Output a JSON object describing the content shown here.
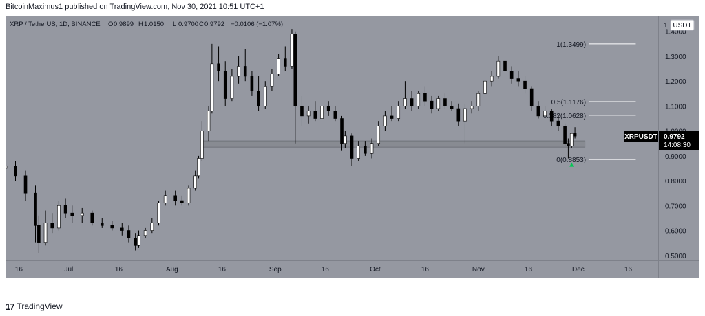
{
  "header": {
    "published_line": "BitcoinMaximus1 published on TradingView.com, Nov 30, 2021 10:51 UTC+1"
  },
  "legend": {
    "symbol": "XRP / TetherUS, 1D, BINANCE",
    "o_label": "O",
    "o_value": "0.9899",
    "h_label": "H",
    "h_value": "1.0150",
    "l_label": "L",
    "l_value": "0.9700",
    "c_label": "C",
    "c_value": "0.9792",
    "change": "−0.0106 (−1.07%)"
  },
  "price_axis": {
    "currency": "USDT",
    "top_marker": "1",
    "ticks": [
      "1.4000",
      "1.3000",
      "1.2000",
      "1.1000",
      "1.0000",
      "0.9000",
      "0.8000",
      "0.7000",
      "0.6000",
      "0.5000"
    ]
  },
  "last_price": {
    "symbol": "XRPUSDT",
    "price": "0.9792",
    "countdown": "14:08:30"
  },
  "fib_levels": [
    {
      "label": "1(1.3499)"
    },
    {
      "label": "0.5(1.1176)"
    },
    {
      "label": "0.382(1.0628)"
    },
    {
      "label": "0(0.8853)"
    }
  ],
  "time_axis": {
    "labels": [
      "16",
      "Jul",
      "16",
      "Aug",
      "16",
      "Sep",
      "16",
      "Oct",
      "16",
      "Nov",
      "16",
      "Dec",
      "16"
    ]
  },
  "footer": {
    "brand": "TradingView"
  },
  "colors": {
    "background": "#9598a1",
    "candle_up": "#ffffff",
    "candle_down": "#000000",
    "support_zone": "#888b92",
    "arrow": "#00c853",
    "fib_line": "#ffffff"
  },
  "chart_data": {
    "type": "candlestick",
    "title": "XRP / TetherUS, 1D, BINANCE",
    "ylim": [
      0.48,
      1.46
    ],
    "y_ticks": [
      1.4,
      1.3,
      1.2,
      1.1,
      1.0,
      0.9,
      0.8,
      0.7,
      0.6,
      0.5
    ],
    "x_start": "2021-06-12",
    "x_end": "2021-12-25",
    "x_ticks": [
      "2021-06-16",
      "2021-07-01",
      "2021-07-16",
      "2021-08-01",
      "2021-08-16",
      "2021-09-01",
      "2021-09-16",
      "2021-10-01",
      "2021-10-16",
      "2021-11-01",
      "2021-11-16",
      "2021-12-01",
      "2021-12-16"
    ],
    "support_zone": {
      "from_date": "2021-08-10",
      "to_date": "2021-12-03",
      "low": 0.935,
      "high": 0.96
    },
    "fib_prices": [
      1.3499,
      1.1176,
      1.0628,
      0.8853
    ],
    "fib_from_date": "2021-11-30",
    "fib_to_date": "2021-12-10",
    "arrow": {
      "date": "2021-11-29",
      "price": 0.862
    },
    "candles": [
      {
        "d": "2021-06-12",
        "o": 0.85,
        "h": 0.88,
        "l": 0.82,
        "c": 0.86
      },
      {
        "d": "2021-06-15",
        "o": 0.86,
        "h": 0.88,
        "l": 0.8,
        "c": 0.82
      },
      {
        "d": "2021-06-18",
        "o": 0.82,
        "h": 0.84,
        "l": 0.72,
        "c": 0.75
      },
      {
        "d": "2021-06-21",
        "o": 0.75,
        "h": 0.78,
        "l": 0.55,
        "c": 0.62
      },
      {
        "d": "2021-06-22",
        "o": 0.62,
        "h": 0.66,
        "l": 0.51,
        "c": 0.55
      },
      {
        "d": "2021-06-24",
        "o": 0.55,
        "h": 0.68,
        "l": 0.54,
        "c": 0.63
      },
      {
        "d": "2021-06-26",
        "o": 0.63,
        "h": 0.67,
        "l": 0.59,
        "c": 0.61
      },
      {
        "d": "2021-06-28",
        "o": 0.61,
        "h": 0.72,
        "l": 0.6,
        "c": 0.7
      },
      {
        "d": "2021-06-30",
        "o": 0.7,
        "h": 0.73,
        "l": 0.65,
        "c": 0.67
      },
      {
        "d": "2021-07-02",
        "o": 0.67,
        "h": 0.7,
        "l": 0.63,
        "c": 0.66
      },
      {
        "d": "2021-07-05",
        "o": 0.66,
        "h": 0.69,
        "l": 0.63,
        "c": 0.67
      },
      {
        "d": "2021-07-08",
        "o": 0.67,
        "h": 0.68,
        "l": 0.62,
        "c": 0.63
      },
      {
        "d": "2021-07-11",
        "o": 0.63,
        "h": 0.65,
        "l": 0.61,
        "c": 0.62
      },
      {
        "d": "2021-07-14",
        "o": 0.62,
        "h": 0.64,
        "l": 0.6,
        "c": 0.61
      },
      {
        "d": "2021-07-17",
        "o": 0.61,
        "h": 0.63,
        "l": 0.58,
        "c": 0.6
      },
      {
        "d": "2021-07-19",
        "o": 0.6,
        "h": 0.62,
        "l": 0.55,
        "c": 0.57
      },
      {
        "d": "2021-07-21",
        "o": 0.57,
        "h": 0.59,
        "l": 0.52,
        "c": 0.54
      },
      {
        "d": "2021-07-22",
        "o": 0.54,
        "h": 0.6,
        "l": 0.53,
        "c": 0.58
      },
      {
        "d": "2021-07-24",
        "o": 0.58,
        "h": 0.61,
        "l": 0.57,
        "c": 0.6
      },
      {
        "d": "2021-07-26",
        "o": 0.6,
        "h": 0.65,
        "l": 0.59,
        "c": 0.63
      },
      {
        "d": "2021-07-28",
        "o": 0.63,
        "h": 0.72,
        "l": 0.62,
        "c": 0.71
      },
      {
        "d": "2021-07-30",
        "o": 0.71,
        "h": 0.76,
        "l": 0.7,
        "c": 0.74
      },
      {
        "d": "2021-08-02",
        "o": 0.74,
        "h": 0.76,
        "l": 0.7,
        "c": 0.72
      },
      {
        "d": "2021-08-04",
        "o": 0.72,
        "h": 0.74,
        "l": 0.7,
        "c": 0.71
      },
      {
        "d": "2021-08-06",
        "o": 0.71,
        "h": 0.78,
        "l": 0.7,
        "c": 0.77
      },
      {
        "d": "2021-08-08",
        "o": 0.77,
        "h": 0.84,
        "l": 0.76,
        "c": 0.82
      },
      {
        "d": "2021-08-09",
        "o": 0.82,
        "h": 0.9,
        "l": 0.81,
        "c": 0.89
      },
      {
        "d": "2021-08-10",
        "o": 0.89,
        "h": 1.04,
        "l": 0.88,
        "c": 1.0
      },
      {
        "d": "2021-08-12",
        "o": 1.0,
        "h": 1.1,
        "l": 0.96,
        "c": 1.08
      },
      {
        "d": "2021-08-13",
        "o": 1.08,
        "h": 1.35,
        "l": 1.07,
        "c": 1.27
      },
      {
        "d": "2021-08-15",
        "o": 1.27,
        "h": 1.34,
        "l": 1.2,
        "c": 1.24
      },
      {
        "d": "2021-08-17",
        "o": 1.24,
        "h": 1.28,
        "l": 1.1,
        "c": 1.13
      },
      {
        "d": "2021-08-19",
        "o": 1.13,
        "h": 1.25,
        "l": 1.12,
        "c": 1.22
      },
      {
        "d": "2021-08-21",
        "o": 1.22,
        "h": 1.3,
        "l": 1.19,
        "c": 1.26
      },
      {
        "d": "2021-08-23",
        "o": 1.26,
        "h": 1.33,
        "l": 1.2,
        "c": 1.22
      },
      {
        "d": "2021-08-25",
        "o": 1.22,
        "h": 1.24,
        "l": 1.14,
        "c": 1.16
      },
      {
        "d": "2021-08-27",
        "o": 1.16,
        "h": 1.22,
        "l": 1.08,
        "c": 1.1
      },
      {
        "d": "2021-08-29",
        "o": 1.1,
        "h": 1.2,
        "l": 1.09,
        "c": 1.18
      },
      {
        "d": "2021-08-31",
        "o": 1.18,
        "h": 1.25,
        "l": 1.16,
        "c": 1.23
      },
      {
        "d": "2021-09-02",
        "o": 1.23,
        "h": 1.31,
        "l": 1.22,
        "c": 1.29
      },
      {
        "d": "2021-09-04",
        "o": 1.29,
        "h": 1.34,
        "l": 1.24,
        "c": 1.26
      },
      {
        "d": "2021-09-06",
        "o": 1.26,
        "h": 1.41,
        "l": 1.25,
        "c": 1.39
      },
      {
        "d": "2021-09-07",
        "o": 1.39,
        "h": 1.4,
        "l": 0.95,
        "c": 1.1
      },
      {
        "d": "2021-09-09",
        "o": 1.1,
        "h": 1.14,
        "l": 1.02,
        "c": 1.06
      },
      {
        "d": "2021-09-11",
        "o": 1.06,
        "h": 1.1,
        "l": 1.03,
        "c": 1.08
      },
      {
        "d": "2021-09-13",
        "o": 1.08,
        "h": 1.12,
        "l": 1.04,
        "c": 1.05
      },
      {
        "d": "2021-09-15",
        "o": 1.05,
        "h": 1.11,
        "l": 1.04,
        "c": 1.1
      },
      {
        "d": "2021-09-17",
        "o": 1.1,
        "h": 1.12,
        "l": 1.06,
        "c": 1.08
      },
      {
        "d": "2021-09-19",
        "o": 1.08,
        "h": 1.1,
        "l": 1.04,
        "c": 1.05
      },
      {
        "d": "2021-09-21",
        "o": 1.05,
        "h": 1.06,
        "l": 0.92,
        "c": 0.95
      },
      {
        "d": "2021-09-22",
        "o": 0.95,
        "h": 1.0,
        "l": 0.93,
        "c": 0.98
      },
      {
        "d": "2021-09-24",
        "o": 0.98,
        "h": 0.99,
        "l": 0.86,
        "c": 0.89
      },
      {
        "d": "2021-09-26",
        "o": 0.89,
        "h": 0.96,
        "l": 0.88,
        "c": 0.94
      },
      {
        "d": "2021-09-28",
        "o": 0.94,
        "h": 0.96,
        "l": 0.9,
        "c": 0.91
      },
      {
        "d": "2021-09-30",
        "o": 0.91,
        "h": 0.97,
        "l": 0.89,
        "c": 0.95
      },
      {
        "d": "2021-10-02",
        "o": 0.95,
        "h": 1.04,
        "l": 0.94,
        "c": 1.02
      },
      {
        "d": "2021-10-04",
        "o": 1.02,
        "h": 1.08,
        "l": 1.0,
        "c": 1.06
      },
      {
        "d": "2021-10-06",
        "o": 1.06,
        "h": 1.1,
        "l": 1.04,
        "c": 1.05
      },
      {
        "d": "2021-10-08",
        "o": 1.05,
        "h": 1.12,
        "l": 1.04,
        "c": 1.1
      },
      {
        "d": "2021-10-10",
        "o": 1.1,
        "h": 1.2,
        "l": 1.09,
        "c": 1.13
      },
      {
        "d": "2021-10-12",
        "o": 1.13,
        "h": 1.16,
        "l": 1.08,
        "c": 1.1
      },
      {
        "d": "2021-10-14",
        "o": 1.1,
        "h": 1.16,
        "l": 1.09,
        "c": 1.15
      },
      {
        "d": "2021-10-16",
        "o": 1.15,
        "h": 1.18,
        "l": 1.1,
        "c": 1.12
      },
      {
        "d": "2021-10-18",
        "o": 1.12,
        "h": 1.14,
        "l": 1.07,
        "c": 1.09
      },
      {
        "d": "2021-10-20",
        "o": 1.09,
        "h": 1.14,
        "l": 1.08,
        "c": 1.13
      },
      {
        "d": "2021-10-22",
        "o": 1.13,
        "h": 1.15,
        "l": 1.09,
        "c": 1.1
      },
      {
        "d": "2021-10-24",
        "o": 1.1,
        "h": 1.12,
        "l": 1.08,
        "c": 1.09
      },
      {
        "d": "2021-10-26",
        "o": 1.09,
        "h": 1.11,
        "l": 1.02,
        "c": 1.04
      },
      {
        "d": "2021-10-28",
        "o": 1.04,
        "h": 1.11,
        "l": 0.95,
        "c": 1.09
      },
      {
        "d": "2021-10-30",
        "o": 1.09,
        "h": 1.12,
        "l": 1.07,
        "c": 1.1
      },
      {
        "d": "2021-11-01",
        "o": 1.1,
        "h": 1.16,
        "l": 1.08,
        "c": 1.15
      },
      {
        "d": "2021-11-03",
        "o": 1.15,
        "h": 1.21,
        "l": 1.12,
        "c": 1.2
      },
      {
        "d": "2021-11-05",
        "o": 1.2,
        "h": 1.24,
        "l": 1.18,
        "c": 1.22
      },
      {
        "d": "2021-11-07",
        "o": 1.22,
        "h": 1.3,
        "l": 1.21,
        "c": 1.28
      },
      {
        "d": "2021-11-09",
        "o": 1.28,
        "h": 1.35,
        "l": 1.2,
        "c": 1.24
      },
      {
        "d": "2021-11-11",
        "o": 1.24,
        "h": 1.26,
        "l": 1.19,
        "c": 1.21
      },
      {
        "d": "2021-11-13",
        "o": 1.21,
        "h": 1.24,
        "l": 1.18,
        "c": 1.2
      },
      {
        "d": "2021-11-15",
        "o": 1.2,
        "h": 1.22,
        "l": 1.15,
        "c": 1.17
      },
      {
        "d": "2021-11-17",
        "o": 1.17,
        "h": 1.18,
        "l": 1.08,
        "c": 1.1
      },
      {
        "d": "2021-11-19",
        "o": 1.1,
        "h": 1.12,
        "l": 1.05,
        "c": 1.06
      },
      {
        "d": "2021-11-21",
        "o": 1.06,
        "h": 1.1,
        "l": 1.05,
        "c": 1.08
      },
      {
        "d": "2021-11-23",
        "o": 1.08,
        "h": 1.09,
        "l": 1.02,
        "c": 1.04
      },
      {
        "d": "2021-11-25",
        "o": 1.04,
        "h": 1.06,
        "l": 1.0,
        "c": 1.02
      },
      {
        "d": "2021-11-27",
        "o": 1.02,
        "h": 1.03,
        "l": 0.94,
        "c": 0.95
      },
      {
        "d": "2021-11-28",
        "o": 0.95,
        "h": 0.97,
        "l": 0.89,
        "c": 0.94
      },
      {
        "d": "2021-11-29",
        "o": 0.94,
        "h": 0.99,
        "l": 0.93,
        "c": 0.99
      },
      {
        "d": "2021-11-30",
        "o": 0.9899,
        "h": 1.015,
        "l": 0.97,
        "c": 0.9792
      }
    ]
  }
}
